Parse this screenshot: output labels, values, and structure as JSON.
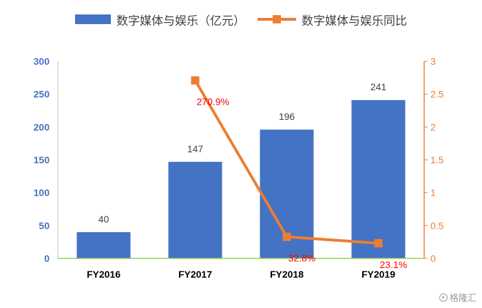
{
  "legend": {
    "bar_label": "数字媒体与娱乐（亿元）",
    "line_label": "数字媒体与娱乐同比"
  },
  "watermark": {
    "text": "格隆汇",
    "icon": "gelonghui-logo-icon"
  },
  "colors": {
    "bar": "#4472C4",
    "line": "#ED7D31",
    "line_label": "#FF0000",
    "left_axis": "#4472C4",
    "right_axis": "#ED7D31",
    "x_axis": "#92D050"
  },
  "chart_data": {
    "type": "bar",
    "categories": [
      "FY2016",
      "FY2017",
      "FY2018",
      "FY2019"
    ],
    "series": [
      {
        "name": "数字媒体与娱乐（亿元）",
        "type": "bar",
        "axis": "left",
        "values": [
          40,
          147,
          196,
          241
        ],
        "labels": [
          "40",
          "147",
          "196",
          "241"
        ]
      },
      {
        "name": "数字媒体与娱乐同比",
        "type": "line",
        "axis": "right",
        "values": [
          null,
          2.709,
          0.328,
          0.231
        ],
        "labels": [
          "",
          "270.9%",
          "32.8%",
          "23.1%"
        ]
      }
    ],
    "y_left": {
      "min": 0,
      "max": 300,
      "ticks": [
        "0",
        "50",
        "100",
        "150",
        "200",
        "250",
        "300"
      ]
    },
    "y_right": {
      "min": 0,
      "max": 3,
      "ticks": [
        "0",
        "0.5",
        "1",
        "1.5",
        "2",
        "2.5",
        "3"
      ]
    },
    "grid": false,
    "legend_position": "top"
  }
}
